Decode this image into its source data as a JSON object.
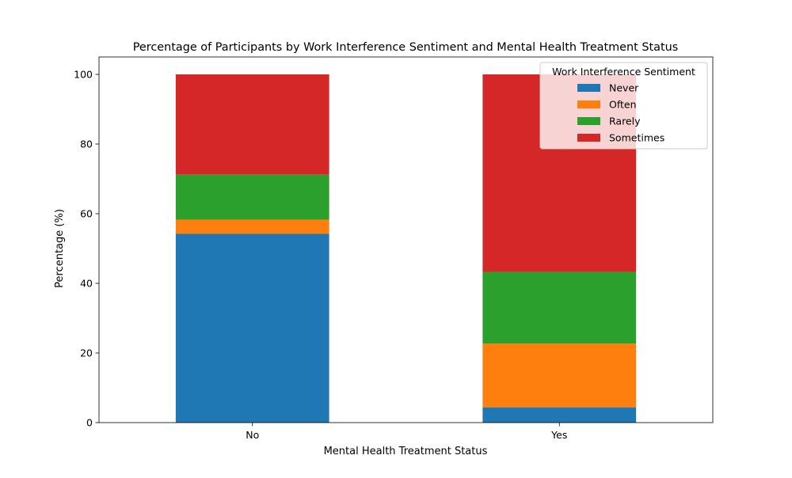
{
  "chart_data": {
    "type": "bar",
    "stacked": true,
    "title": "Percentage of Participants by Work Interference Sentiment and Mental Health Treatment Status",
    "xlabel": "Mental Health Treatment Status",
    "ylabel": "Percentage (%)",
    "categories": [
      "No",
      "Yes"
    ],
    "ylim": [
      0,
      105
    ],
    "yticks": [
      0,
      20,
      40,
      60,
      80,
      100
    ],
    "grid": false,
    "legend": {
      "title": "Work Interference Sentiment",
      "placement": "upper-right"
    },
    "series": [
      {
        "name": "Never",
        "color": "#1f77b4",
        "values": [
          54.2,
          4.4
        ]
      },
      {
        "name": "Often",
        "color": "#ff7f0e",
        "values": [
          4.1,
          18.3
        ]
      },
      {
        "name": "Rarely",
        "color": "#2ca02c",
        "values": [
          12.9,
          20.6
        ]
      },
      {
        "name": "Sometimes",
        "color": "#d62728",
        "values": [
          28.8,
          56.7
        ]
      }
    ]
  }
}
